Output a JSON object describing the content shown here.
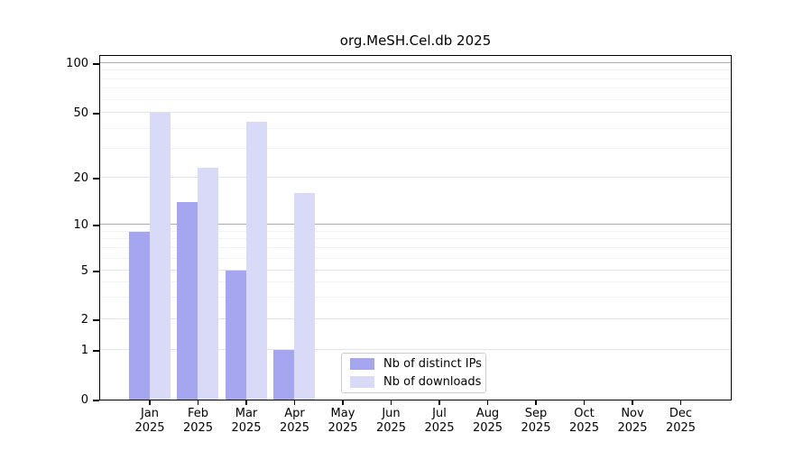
{
  "chart_data": {
    "type": "bar",
    "title": "org.MeSH.Cel.db 2025",
    "categories": [
      "Jan 2025",
      "Feb 2025",
      "Mar 2025",
      "Apr 2025",
      "May 2025",
      "Jun 2025",
      "Jul 2025",
      "Aug 2025",
      "Sep 2025",
      "Oct 2025",
      "Nov 2025",
      "Dec 2025"
    ],
    "series": [
      {
        "name": "Nb of distinct IPs",
        "color": "#a5a5f0",
        "values": [
          9,
          14,
          5,
          1,
          0,
          0,
          0,
          0,
          0,
          0,
          0,
          0
        ]
      },
      {
        "name": "Nb of downloads",
        "color": "#d9d9f8",
        "values": [
          50,
          23,
          44,
          16,
          0,
          0,
          0,
          0,
          0,
          0,
          0,
          0
        ]
      }
    ],
    "y_axis": {
      "scale": "log-like",
      "ticks": [
        0,
        1,
        2,
        5,
        10,
        20,
        50,
        100
      ],
      "minor_gridlines": [
        3,
        4,
        6,
        7,
        8,
        9,
        30,
        40,
        60,
        70,
        80,
        90
      ],
      "range_top": 114
    },
    "x_axis": {
      "label_year": "2025"
    },
    "legend": {
      "position": "lower center inside"
    },
    "grid": "horizontal",
    "colors": {
      "bar_distinct_ips": "#a5a5f0",
      "bar_downloads": "#d9d9f8",
      "axis": "#000000",
      "grid_decade": "#ababab",
      "grid_labeled": "#e4e4e4",
      "grid_minor": "#f2f2f2",
      "legend_border": "#cccccc",
      "background": "#ffffff"
    }
  }
}
